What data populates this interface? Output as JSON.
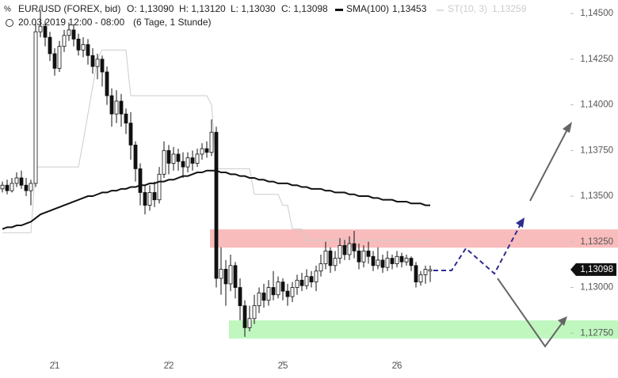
{
  "header": {
    "symbol": "EUR/USD (FOREX, bid)",
    "open": "O: 1,13090",
    "high": "H: 1,13120",
    "low": "L: 1,13030",
    "close": "C: 1,13098",
    "sma_name": "SMA(100)",
    "sma_value": "1,13453",
    "st_name": "ST(10, 3)",
    "st_value": "1,13259",
    "range": "20.03.2019 12:00 - 08:00",
    "period": "(6 Tage, 1 Stunde)"
  },
  "chart_data": {
    "type": "candlestick",
    "categories": [
      null,
      null,
      null,
      null,
      null,
      null,
      null,
      null,
      null,
      null,
      null,
      "21",
      null,
      null,
      null,
      null,
      null,
      null,
      null,
      null,
      null,
      null,
      null,
      null,
      null,
      null,
      null,
      null,
      null,
      null,
      null,
      null,
      null,
      null,
      null,
      "22",
      null,
      null,
      null,
      null,
      null,
      null,
      null,
      null,
      null,
      null,
      null,
      null,
      null,
      null,
      null,
      null,
      null,
      null,
      null,
      null,
      null,
      null,
      null,
      "25",
      null,
      null,
      null,
      null,
      null,
      null,
      null,
      null,
      null,
      null,
      null,
      null,
      null,
      null,
      null,
      null,
      null,
      null,
      null,
      null,
      null,
      null,
      null,
      "26",
      null,
      null,
      null,
      null,
      null,
      null,
      null
    ],
    "open": [
      1.1354,
      1.1356,
      1.1353,
      1.1357,
      1.136,
      1.1356,
      1.1353,
      1.1357,
      1.144,
      1.1443,
      1.1437,
      1.1428,
      1.142,
      1.1432,
      1.1438,
      1.1441,
      1.1436,
      1.143,
      1.1433,
      1.1427,
      1.1421,
      1.1425,
      1.1418,
      1.1405,
      1.1395,
      1.1402,
      1.1395,
      1.139,
      1.1378,
      1.1365,
      1.1352,
      1.1345,
      1.1352,
      1.1348,
      1.1362,
      1.1375,
      1.1368,
      1.1373,
      1.1369,
      1.1366,
      1.1371,
      1.1368,
      1.1373,
      1.1376,
      1.1374,
      1.1385,
      1.1305,
      1.131,
      1.1302,
      1.1312,
      1.13,
      1.129,
      1.1278,
      1.1283,
      1.129,
      1.1297,
      1.1293,
      1.13,
      1.1296,
      1.1303,
      1.1298,
      1.1295,
      1.13,
      1.1304,
      1.1301,
      1.1306,
      1.1303,
      1.1309,
      1.1313,
      1.132,
      1.1312,
      1.1316,
      1.1323,
      1.1318,
      1.1324,
      1.132,
      1.1314,
      1.132,
      1.1317,
      1.1312,
      1.1315,
      1.1311,
      1.1316,
      1.1313,
      1.1317,
      1.1314,
      1.1316,
      1.1312,
      1.1303,
      1.1307,
      1.1309
    ],
    "high": [
      1.1358,
      1.1359,
      1.136,
      1.1363,
      1.1364,
      1.136,
      1.1359,
      1.1446,
      1.1452,
      1.1446,
      1.144,
      1.1431,
      1.1435,
      1.1441,
      1.1445,
      1.1444,
      1.1439,
      1.1437,
      1.1436,
      1.1431,
      1.1428,
      1.1427,
      1.1421,
      1.1409,
      1.1408,
      1.1406,
      1.1398,
      1.1396,
      1.138,
      1.1368,
      1.1356,
      1.1356,
      1.1358,
      1.1366,
      1.138,
      1.1378,
      1.1377,
      1.1376,
      1.1374,
      1.1374,
      1.1375,
      1.1376,
      1.1379,
      1.138,
      1.1392,
      1.1388,
      1.1322,
      1.1315,
      1.1318,
      1.1314,
      1.1305,
      1.1293,
      1.129,
      1.1296,
      1.13,
      1.1302,
      1.1304,
      1.1309,
      1.1306,
      1.1305,
      1.1302,
      1.1303,
      1.1307,
      1.1308,
      1.131,
      1.1309,
      1.1312,
      1.1318,
      1.1325,
      1.1322,
      1.132,
      1.1327,
      1.1326,
      1.1328,
      1.1331,
      1.1324,
      1.1323,
      1.1325,
      1.132,
      1.1322,
      1.1318,
      1.132,
      1.1318,
      1.132,
      1.1319,
      1.1318,
      1.1317,
      1.1314,
      1.1309,
      1.1312,
      1.1312
    ],
    "low": [
      1.1352,
      1.1351,
      1.1352,
      1.1355,
      1.1354,
      1.135,
      1.1345,
      1.1355,
      1.1437,
      1.1432,
      1.1424,
      1.1416,
      1.1418,
      1.1429,
      1.1435,
      1.1432,
      1.1427,
      1.1426,
      1.1422,
      1.1417,
      1.1414,
      1.141,
      1.14,
      1.1388,
      1.139,
      1.1388,
      1.1384,
      1.137,
      1.1358,
      1.1345,
      1.134,
      1.1342,
      1.1344,
      1.1346,
      1.136,
      1.1362,
      1.1364,
      1.1364,
      1.136,
      1.1363,
      1.1364,
      1.1366,
      1.137,
      1.1371,
      1.1372,
      1.13,
      1.1296,
      1.129,
      1.1298,
      1.1294,
      1.1282,
      1.1273,
      1.1276,
      1.128,
      1.1286,
      1.1289,
      1.129,
      1.1293,
      1.1294,
      1.1293,
      1.129,
      1.1292,
      1.1296,
      1.1298,
      1.1299,
      1.13,
      1.1298,
      1.1306,
      1.131,
      1.1308,
      1.1309,
      1.1313,
      1.1315,
      1.1315,
      1.1316,
      1.131,
      1.1311,
      1.1313,
      1.1309,
      1.131,
      1.1308,
      1.1309,
      1.131,
      1.1311,
      1.1311,
      1.1312,
      1.1309,
      1.13,
      1.1301,
      1.1302,
      1.1303
    ],
    "close": [
      1.1356,
      1.1353,
      1.1357,
      1.136,
      1.1356,
      1.1353,
      1.1357,
      1.144,
      1.1443,
      1.1437,
      1.1428,
      1.142,
      1.1432,
      1.1438,
      1.1441,
      1.1436,
      1.143,
      1.1433,
      1.1427,
      1.1421,
      1.1425,
      1.1418,
      1.1405,
      1.1395,
      1.1402,
      1.1395,
      1.139,
      1.1378,
      1.1365,
      1.1352,
      1.1345,
      1.1352,
      1.1348,
      1.1362,
      1.1375,
      1.1368,
      1.1373,
      1.1369,
      1.1366,
      1.1371,
      1.1368,
      1.1373,
      1.1376,
      1.1374,
      1.1385,
      1.1305,
      1.131,
      1.1302,
      1.1312,
      1.13,
      1.129,
      1.1278,
      1.1283,
      1.129,
      1.1297,
      1.1293,
      1.13,
      1.1296,
      1.1303,
      1.1298,
      1.1295,
      1.13,
      1.1304,
      1.1301,
      1.1306,
      1.1303,
      1.1309,
      1.1313,
      1.132,
      1.1312,
      1.1316,
      1.1323,
      1.1318,
      1.1324,
      1.132,
      1.1314,
      1.132,
      1.1317,
      1.1312,
      1.1315,
      1.1311,
      1.1316,
      1.1313,
      1.1317,
      1.1314,
      1.1316,
      1.1312,
      1.1303,
      1.1307,
      1.131,
      1.13098
    ],
    "lines": [
      {
        "name": "SMA(100)",
        "color": "#111111",
        "width": 2,
        "values": [
          1.1332,
          1.1333,
          1.1333,
          1.1334,
          1.1334,
          1.1335,
          1.1336,
          1.1338,
          1.134,
          1.1341,
          1.1342,
          1.1343,
          1.1344,
          1.1345,
          1.1346,
          1.1347,
          1.1348,
          1.1349,
          1.135,
          1.135,
          1.1351,
          1.1352,
          1.1352,
          1.1353,
          1.1353,
          1.1354,
          1.1354,
          1.1355,
          1.1355,
          1.1356,
          1.1356,
          1.1357,
          1.1357,
          1.1358,
          1.1358,
          1.1359,
          1.1359,
          1.136,
          1.1361,
          1.1361,
          1.1362,
          1.1363,
          1.1363,
          1.1364,
          1.1364,
          1.1364,
          1.1363,
          1.1363,
          1.1362,
          1.1362,
          1.1361,
          1.1361,
          1.136,
          1.136,
          1.1359,
          1.1359,
          1.1358,
          1.1358,
          1.1357,
          1.1357,
          1.1357,
          1.1356,
          1.1356,
          1.1355,
          1.1355,
          1.1354,
          1.1354,
          1.1354,
          1.1353,
          1.1353,
          1.1352,
          1.1352,
          1.1352,
          1.1351,
          1.1351,
          1.135,
          1.135,
          1.135,
          1.1349,
          1.1349,
          1.1348,
          1.1348,
          1.1348,
          1.1347,
          1.1347,
          1.1347,
          1.1346,
          1.1346,
          1.1346,
          1.1345,
          1.1345
        ]
      },
      {
        "name": "ST(10, 3)",
        "color": "#cccccc",
        "width": 1,
        "values": [
          1.133,
          1.133,
          1.133,
          1.133,
          1.133,
          1.133,
          1.133,
          1.1366,
          1.1366,
          1.1366,
          1.1366,
          1.1366,
          1.1366,
          1.1366,
          1.1366,
          1.1366,
          1.1366,
          1.138,
          1.1395,
          1.141,
          1.1425,
          1.143,
          1.143,
          1.143,
          1.143,
          1.143,
          1.143,
          1.1405,
          1.1405,
          1.1405,
          1.1405,
          1.1405,
          1.1405,
          1.1405,
          1.1405,
          1.1405,
          1.1405,
          1.1405,
          1.1405,
          1.1405,
          1.1405,
          1.1405,
          1.1405,
          1.1405,
          1.14,
          1.1365,
          1.1365,
          1.1365,
          1.1365,
          1.1365,
          1.1365,
          1.1365,
          1.1365,
          1.1351,
          1.1351,
          1.1351,
          1.1351,
          1.1351,
          1.1351,
          1.1345,
          1.1345,
          1.1332,
          1.1332,
          1.1332,
          1.13259,
          1.13259,
          1.13259,
          1.13259,
          1.13259,
          1.13259,
          1.13259,
          1.13259,
          1.13259,
          1.13259,
          1.13259,
          1.13259,
          1.13259,
          1.13259,
          1.13259,
          1.13259,
          1.13259,
          1.13259,
          1.13259,
          1.13259,
          1.13259,
          1.13259,
          1.13259,
          1.13259,
          1.13259,
          1.13259,
          1.13259
        ]
      }
    ],
    "zones": [
      {
        "low": 1.13218,
        "high": 1.13318,
        "color": "#f9bcbc"
      },
      {
        "low": 1.1272,
        "high": 1.1282,
        "color": "#bff7bf"
      }
    ],
    "last_price": {
      "value": 1.13098,
      "label": "1,13098"
    },
    "ylim": [
      1.12604,
      1.14574
    ],
    "yticks": [
      {
        "value": 1.145,
        "label": "1,14500"
      },
      {
        "value": 1.1425,
        "label": "1,14250"
      },
      {
        "value": 1.14,
        "label": "1,14000"
      },
      {
        "value": 1.1375,
        "label": "1,13750"
      },
      {
        "value": 1.135,
        "label": "1,13500"
      },
      {
        "value": 1.1325,
        "label": "1,13250"
      },
      {
        "value": 1.13,
        "label": "1,13000"
      },
      {
        "value": 1.1275,
        "label": "1,12750"
      }
    ],
    "grid": false
  }
}
